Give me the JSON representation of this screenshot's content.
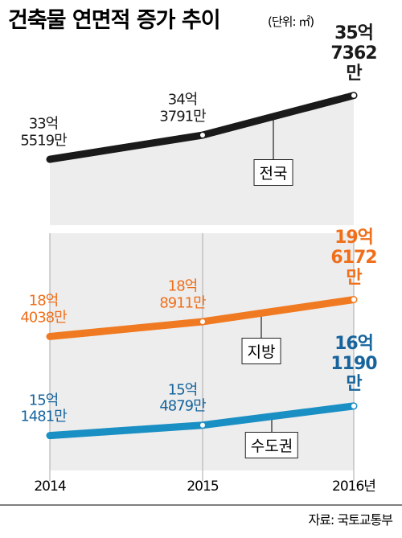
{
  "title": "건축물 연면적 증가 추이",
  "unit": "(단위: ㎡)",
  "source": "자료: 국토교통부",
  "chart_data": [
    {
      "type": "line",
      "categories": null,
      "ylim": [
        3130000000,
        3680000000
      ],
      "series": [
        {
          "name": "전국",
          "color": "#1a1a1a",
          "label_color": "#1a1a1a",
          "values": [
            3355190000,
            3437910000,
            3573620000
          ],
          "value_labels": [
            "33억\n5519만",
            "34억\n3791만",
            "35억\n7362만"
          ]
        }
      ]
    },
    {
      "type": "line",
      "categories": [
        "2014",
        "2015",
        "2016년"
      ],
      "ylim": [
        1400000000,
        2180000000
      ],
      "series": [
        {
          "name": "지방",
          "color": "#f07a22",
          "label_color": "#ef6f1a",
          "values": [
            1840380000,
            1889110000,
            1961720000
          ],
          "value_labels": [
            "18억\n4038만",
            "18억\n8911만",
            "19억\n6172만"
          ]
        },
        {
          "name": "수도권",
          "color": "#1a8fc4",
          "label_color": "#17649c",
          "values": [
            1514810000,
            1548790000,
            1611900000
          ],
          "value_labels": [
            "15억\n1481만",
            "15억\n4879만",
            "16억\n1190만"
          ]
        }
      ]
    }
  ]
}
